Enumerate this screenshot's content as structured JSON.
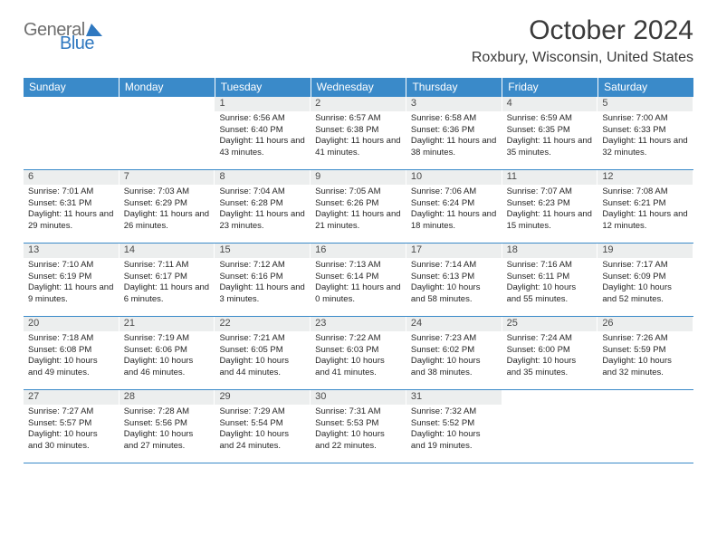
{
  "logo": {
    "word1": "General",
    "word2": "Blue"
  },
  "title": "October 2024",
  "location": "Roxbury, Wisconsin, United States",
  "header_bg": "#3a8ac9",
  "header_fg": "#ffffff",
  "daynum_bg": "#eceeee",
  "week_border": "#3a8ac9",
  "weekday_fontsize": 12,
  "body_fontsize": 9.5,
  "weekdays": [
    "Sunday",
    "Monday",
    "Tuesday",
    "Wednesday",
    "Thursday",
    "Friday",
    "Saturday"
  ],
  "weeks": [
    [
      null,
      null,
      {
        "n": "1",
        "sr": "6:56 AM",
        "ss": "6:40 PM",
        "dl": "11 hours and 43 minutes."
      },
      {
        "n": "2",
        "sr": "6:57 AM",
        "ss": "6:38 PM",
        "dl": "11 hours and 41 minutes."
      },
      {
        "n": "3",
        "sr": "6:58 AM",
        "ss": "6:36 PM",
        "dl": "11 hours and 38 minutes."
      },
      {
        "n": "4",
        "sr": "6:59 AM",
        "ss": "6:35 PM",
        "dl": "11 hours and 35 minutes."
      },
      {
        "n": "5",
        "sr": "7:00 AM",
        "ss": "6:33 PM",
        "dl": "11 hours and 32 minutes."
      }
    ],
    [
      {
        "n": "6",
        "sr": "7:01 AM",
        "ss": "6:31 PM",
        "dl": "11 hours and 29 minutes."
      },
      {
        "n": "7",
        "sr": "7:03 AM",
        "ss": "6:29 PM",
        "dl": "11 hours and 26 minutes."
      },
      {
        "n": "8",
        "sr": "7:04 AM",
        "ss": "6:28 PM",
        "dl": "11 hours and 23 minutes."
      },
      {
        "n": "9",
        "sr": "7:05 AM",
        "ss": "6:26 PM",
        "dl": "11 hours and 21 minutes."
      },
      {
        "n": "10",
        "sr": "7:06 AM",
        "ss": "6:24 PM",
        "dl": "11 hours and 18 minutes."
      },
      {
        "n": "11",
        "sr": "7:07 AM",
        "ss": "6:23 PM",
        "dl": "11 hours and 15 minutes."
      },
      {
        "n": "12",
        "sr": "7:08 AM",
        "ss": "6:21 PM",
        "dl": "11 hours and 12 minutes."
      }
    ],
    [
      {
        "n": "13",
        "sr": "7:10 AM",
        "ss": "6:19 PM",
        "dl": "11 hours and 9 minutes."
      },
      {
        "n": "14",
        "sr": "7:11 AM",
        "ss": "6:17 PM",
        "dl": "11 hours and 6 minutes."
      },
      {
        "n": "15",
        "sr": "7:12 AM",
        "ss": "6:16 PM",
        "dl": "11 hours and 3 minutes."
      },
      {
        "n": "16",
        "sr": "7:13 AM",
        "ss": "6:14 PM",
        "dl": "11 hours and 0 minutes."
      },
      {
        "n": "17",
        "sr": "7:14 AM",
        "ss": "6:13 PM",
        "dl": "10 hours and 58 minutes."
      },
      {
        "n": "18",
        "sr": "7:16 AM",
        "ss": "6:11 PM",
        "dl": "10 hours and 55 minutes."
      },
      {
        "n": "19",
        "sr": "7:17 AM",
        "ss": "6:09 PM",
        "dl": "10 hours and 52 minutes."
      }
    ],
    [
      {
        "n": "20",
        "sr": "7:18 AM",
        "ss": "6:08 PM",
        "dl": "10 hours and 49 minutes."
      },
      {
        "n": "21",
        "sr": "7:19 AM",
        "ss": "6:06 PM",
        "dl": "10 hours and 46 minutes."
      },
      {
        "n": "22",
        "sr": "7:21 AM",
        "ss": "6:05 PM",
        "dl": "10 hours and 44 minutes."
      },
      {
        "n": "23",
        "sr": "7:22 AM",
        "ss": "6:03 PM",
        "dl": "10 hours and 41 minutes."
      },
      {
        "n": "24",
        "sr": "7:23 AM",
        "ss": "6:02 PM",
        "dl": "10 hours and 38 minutes."
      },
      {
        "n": "25",
        "sr": "7:24 AM",
        "ss": "6:00 PM",
        "dl": "10 hours and 35 minutes."
      },
      {
        "n": "26",
        "sr": "7:26 AM",
        "ss": "5:59 PM",
        "dl": "10 hours and 32 minutes."
      }
    ],
    [
      {
        "n": "27",
        "sr": "7:27 AM",
        "ss": "5:57 PM",
        "dl": "10 hours and 30 minutes."
      },
      {
        "n": "28",
        "sr": "7:28 AM",
        "ss": "5:56 PM",
        "dl": "10 hours and 27 minutes."
      },
      {
        "n": "29",
        "sr": "7:29 AM",
        "ss": "5:54 PM",
        "dl": "10 hours and 24 minutes."
      },
      {
        "n": "30",
        "sr": "7:31 AM",
        "ss": "5:53 PM",
        "dl": "10 hours and 22 minutes."
      },
      {
        "n": "31",
        "sr": "7:32 AM",
        "ss": "5:52 PM",
        "dl": "10 hours and 19 minutes."
      },
      null,
      null
    ]
  ],
  "labels": {
    "sunrise": "Sunrise:",
    "sunset": "Sunset:",
    "daylight": "Daylight:"
  }
}
